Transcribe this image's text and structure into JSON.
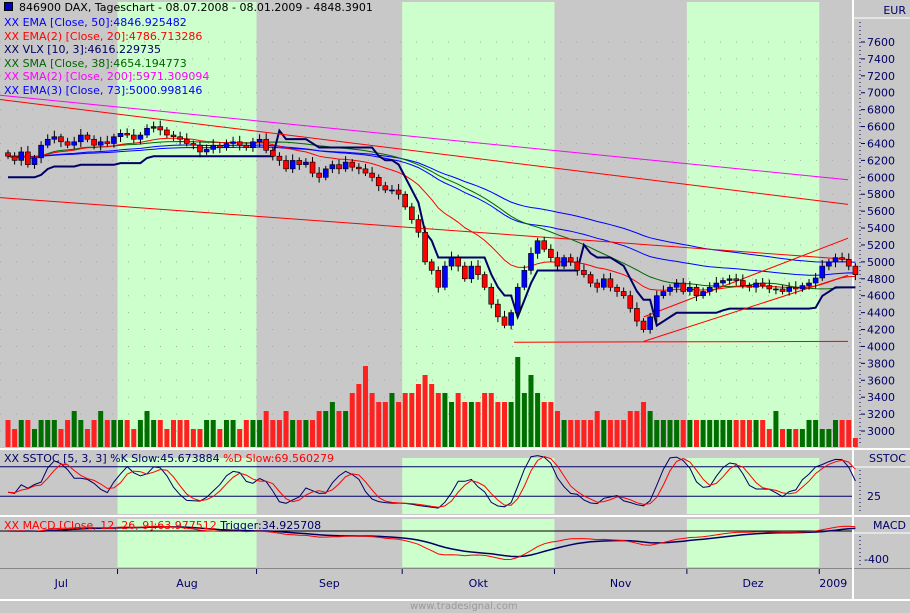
{
  "header": {
    "title": "846900  DAX, Tageschart - 08.07.2008 - 08.01.2009 - 4848.3901"
  },
  "legend_main": [
    {
      "text": "XX EMA [Close, 50]:4846.925482",
      "color": "#0000ff"
    },
    {
      "text": "XX EMA(2) [Close, 20]:4786.713286",
      "color": "#ff0000"
    },
    {
      "text": "XX VLX [10, 3]:4616.229735",
      "color": "#000066"
    },
    {
      "text": "XX SMA [Close, 38]:4654.194773",
      "color": "#006600"
    },
    {
      "text": "XX SMA(2) [Close, 200]:5971.309094",
      "color": "#ff00ff"
    },
    {
      "text": "XX EMA(3) [Close, 73]:5000.998146",
      "color": "#0000ff"
    }
  ],
  "legend_stoch": {
    "prefix": "XX SSTOC [5, 3, 3] %K Slow:45.673884",
    "d": "%D Slow:69.560279"
  },
  "legend_macd": {
    "prefix": "XX MACD [Close, 12, 26, 9]:63.977512",
    "trigger": "Trigger:34.925708"
  },
  "axis": {
    "currency": "EUR",
    "stoch_label": "SSTOC",
    "macd_label": "MACD",
    "stoch_tick": "25",
    "macd_tick": "-400"
  },
  "footer": {
    "watermark": "www.tradesignal.com"
  },
  "colors": {
    "up": "#0000ff",
    "down": "#ff0000",
    "vol_up": "#006f00",
    "vol_down": "#ff2020",
    "band": "#ccffcc",
    "bg": "#c8c8c8"
  },
  "chart_data": {
    "type": "candlestick",
    "title": "846900  DAX, Tageschart - 08.07.2008 - 08.01.2009 - 4848.3901",
    "start_date": "2008-07-08",
    "months": [
      {
        "label": "Jul",
        "bars": 17,
        "shaded": false
      },
      {
        "label": "Aug",
        "bars": 21,
        "shaded": true
      },
      {
        "label": "Sep",
        "bars": 22,
        "shaded": false
      },
      {
        "label": "Okt",
        "bars": 23,
        "shaded": true
      },
      {
        "label": "Nov",
        "bars": 20,
        "shaded": false
      },
      {
        "label": "Dez",
        "bars": 20,
        "shaded": true
      },
      {
        "label": "2009",
        "bars": 6,
        "shaded": false
      }
    ],
    "ylim": [
      2800,
      7800
    ],
    "yticks": [
      7600,
      7400,
      7200,
      7000,
      6800,
      6600,
      6400,
      6200,
      6000,
      5800,
      5600,
      5400,
      5200,
      5000,
      4800,
      4600,
      4400,
      4200,
      4000,
      3800,
      3600,
      3400,
      3200,
      3000
    ],
    "close": [
      6250,
      6200,
      6300,
      6150,
      6230,
      6380,
      6450,
      6480,
      6420,
      6380,
      6420,
      6500,
      6450,
      6380,
      6420,
      6400,
      6480,
      6520,
      6500,
      6450,
      6500,
      6580,
      6600,
      6560,
      6500,
      6480,
      6450,
      6400,
      6380,
      6300,
      6330,
      6380,
      6350,
      6400,
      6420,
      6380,
      6350,
      6420,
      6450,
      6320,
      6250,
      6200,
      6100,
      6200,
      6150,
      6180,
      6050,
      6000,
      6100,
      6150,
      6100,
      6180,
      6120,
      6100,
      6050,
      6000,
      5900,
      5850,
      5850,
      5800,
      5650,
      5500,
      5350,
      5000,
      4900,
      4700,
      4950,
      5050,
      4950,
      4800,
      4950,
      4850,
      4700,
      4500,
      4350,
      4250,
      4400,
      4700,
      4900,
      5100,
      5250,
      5150,
      5050,
      4950,
      5050,
      5000,
      4900,
      4850,
      4750,
      4700,
      4800,
      4700,
      4650,
      4600,
      4450,
      4300,
      4200,
      4350,
      4600,
      4650,
      4700,
      4750,
      4650,
      4700,
      4600,
      4650,
      4700,
      4750,
      4780,
      4800,
      4780,
      4720,
      4700,
      4750,
      4720,
      4680,
      4680,
      4650,
      4700,
      4680,
      4720,
      4750,
      4810,
      4950,
      5000,
      5050,
      5030,
      4950,
      4848
    ],
    "volume": [
      3,
      2,
      3,
      3,
      2,
      3,
      3,
      3,
      2,
      3,
      4,
      3,
      2,
      3,
      4,
      3,
      3,
      3,
      3,
      2,
      3,
      4,
      3,
      3,
      2,
      3,
      3,
      3,
      2,
      2,
      3,
      3,
      2,
      3,
      3,
      2,
      3,
      3,
      3,
      4,
      3,
      3,
      4,
      3,
      3,
      3,
      3,
      4,
      4,
      5,
      4,
      4,
      6,
      7,
      9,
      6,
      5,
      5,
      6,
      5,
      6,
      6,
      7,
      8,
      7,
      6,
      6,
      5,
      6,
      5,
      5,
      5,
      6,
      6,
      5,
      5,
      5,
      10,
      6,
      8,
      6,
      5,
      5,
      4,
      3,
      3,
      3,
      3,
      3,
      4,
      3,
      3,
      3,
      3,
      4,
      4,
      5,
      4,
      3,
      3,
      3,
      3,
      3,
      3,
      3,
      3,
      3,
      3,
      3,
      3,
      3,
      3,
      3,
      3,
      3,
      2,
      4,
      2,
      2,
      2,
      2,
      3,
      3,
      2,
      2,
      3,
      3,
      3,
      1
    ],
    "sma200": {
      "start": 6970,
      "end": 5971.309094
    },
    "trendlines": [
      {
        "from": "2008-07-08",
        "to": "2009-01-08",
        "from_value": 6920,
        "to_value": 5680
      },
      {
        "from": "2008-07-08",
        "to": "2009-01-08",
        "from_value": 5760,
        "to_value": 5030
      },
      {
        "from": "2008-10-24",
        "to": "2009-01-08",
        "from_value": 4050,
        "to_value": 4060
      },
      {
        "from": "2008-11-21",
        "to": "2009-01-08",
        "from_value": 4060,
        "to_value": 4840
      },
      {
        "from": "2008-11-21",
        "to": "2009-01-08",
        "from_value": 4350,
        "to_value": 5280
      }
    ],
    "stoch_levels": [
      75,
      25
    ],
    "last_values": {
      "ema50": 4846.925482,
      "ema20": 4786.713286,
      "vlx": 4616.229735,
      "sma38": 4654.194773,
      "sma200": 5971.309094,
      "ema73": 5000.998146,
      "k_slow": 45.673884,
      "d_slow": 69.560279,
      "macd": 63.977512,
      "trigger": 34.925708
    }
  }
}
